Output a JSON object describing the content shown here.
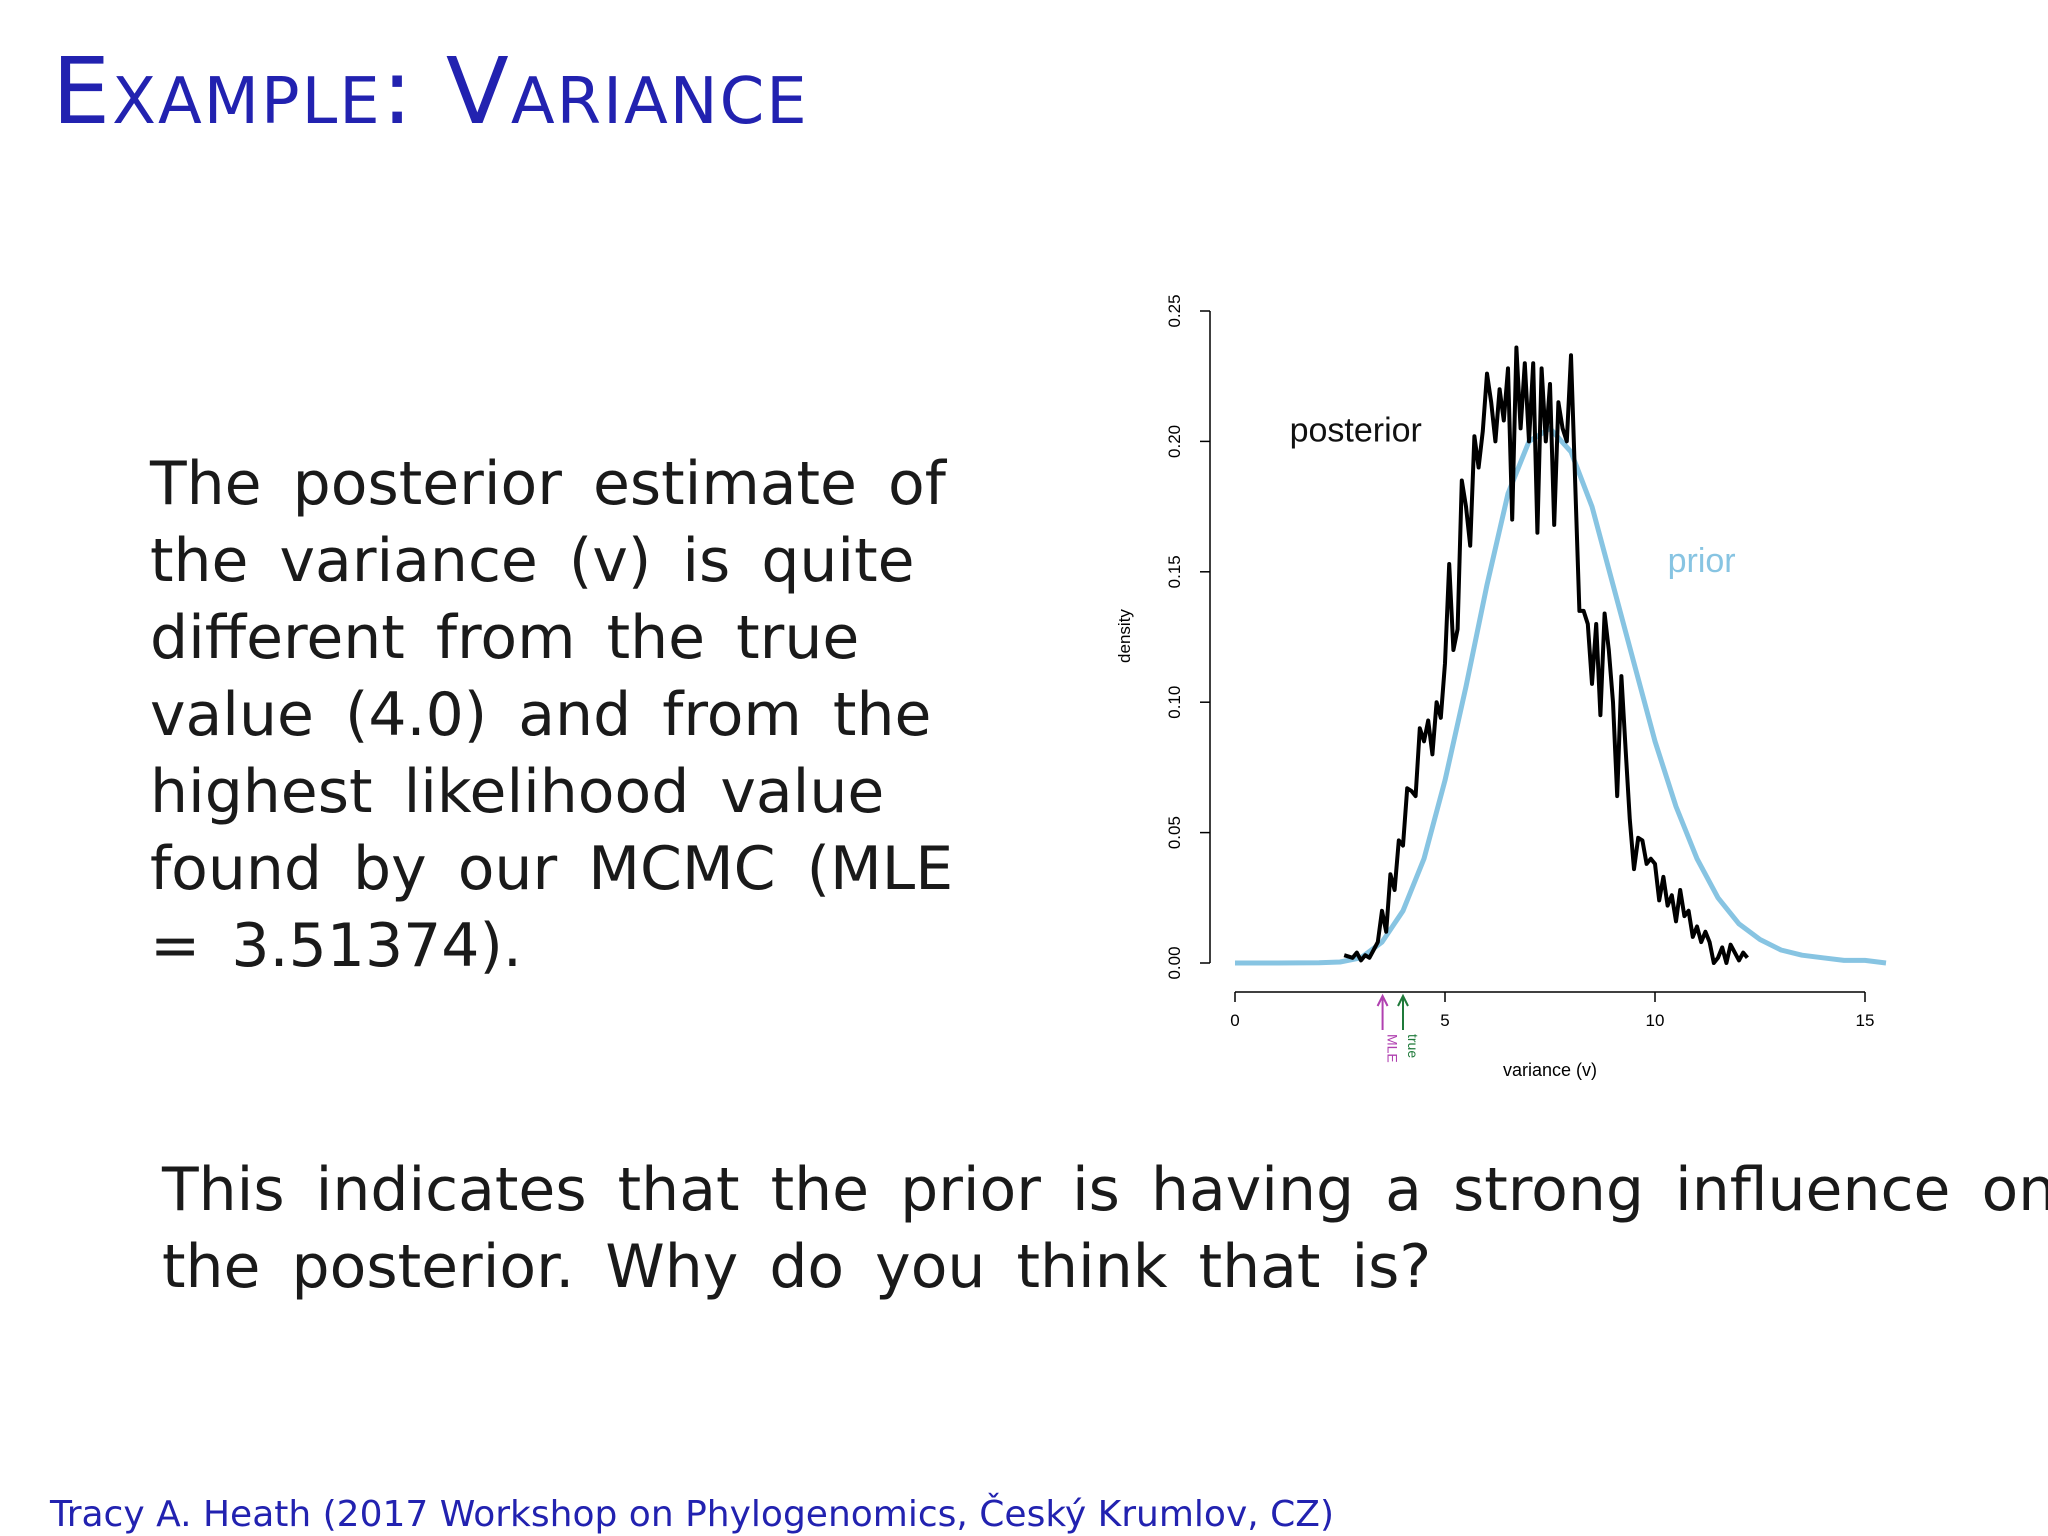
{
  "slide": {
    "title": "Example:  Variance",
    "paragraph1_lines": [
      "The posterior estimate of",
      "the variance (v) is quite",
      "different from the true",
      "value (4.0) and from the",
      "highest likelihood value",
      "found by our MCMC (MLE",
      "= 3.51374)."
    ],
    "paragraph2_lines": [
      "This indicates that the prior is having a strong influence on",
      "the posterior.  Why do you think that is?"
    ],
    "footer": "Tracy A. Heath (2017 Workshop on Phylogenomics, Český Krumlov, CZ)"
  },
  "chart_data": {
    "type": "line",
    "title": "",
    "xlabel": "variance (v)",
    "ylabel": "density",
    "xlim": [
      0,
      15.5
    ],
    "ylim": [
      0,
      0.25
    ],
    "x_ticks": [
      0,
      5,
      10,
      15
    ],
    "x_tick_labels": [
      "0",
      "5",
      "10",
      "15"
    ],
    "y_ticks": [
      0,
      0.05,
      0.1,
      0.15,
      0.2,
      0.25
    ],
    "y_tick_labels": [
      "0.00",
      "0.05",
      "0.10",
      "0.15",
      "0.20",
      "0.25"
    ],
    "grid": false,
    "series": [
      {
        "name": "posterior",
        "color": "#000000",
        "points": [
          [
            2.6,
            0.003
          ],
          [
            2.8,
            0.002
          ],
          [
            2.9,
            0.004
          ],
          [
            3.0,
            0.001
          ],
          [
            3.1,
            0.003
          ],
          [
            3.2,
            0.002
          ],
          [
            3.3,
            0.005
          ],
          [
            3.4,
            0.008
          ],
          [
            3.5,
            0.02
          ],
          [
            3.6,
            0.012
          ],
          [
            3.7,
            0.034
          ],
          [
            3.8,
            0.028
          ],
          [
            3.9,
            0.047
          ],
          [
            4.0,
            0.045
          ],
          [
            4.1,
            0.067
          ],
          [
            4.2,
            0.066
          ],
          [
            4.3,
            0.064
          ],
          [
            4.4,
            0.09
          ],
          [
            4.5,
            0.085
          ],
          [
            4.6,
            0.093
          ],
          [
            4.7,
            0.08
          ],
          [
            4.8,
            0.1
          ],
          [
            4.9,
            0.094
          ],
          [
            5.0,
            0.115
          ],
          [
            5.1,
            0.153
          ],
          [
            5.2,
            0.12
          ],
          [
            5.3,
            0.128
          ],
          [
            5.4,
            0.185
          ],
          [
            5.5,
            0.175
          ],
          [
            5.6,
            0.16
          ],
          [
            5.7,
            0.202
          ],
          [
            5.8,
            0.19
          ],
          [
            5.9,
            0.204
          ],
          [
            6.0,
            0.226
          ],
          [
            6.1,
            0.215
          ],
          [
            6.2,
            0.2
          ],
          [
            6.3,
            0.22
          ],
          [
            6.4,
            0.208
          ],
          [
            6.5,
            0.228
          ],
          [
            6.6,
            0.17
          ],
          [
            6.7,
            0.236
          ],
          [
            6.8,
            0.205
          ],
          [
            6.9,
            0.23
          ],
          [
            7.0,
            0.2
          ],
          [
            7.1,
            0.23
          ],
          [
            7.2,
            0.165
          ],
          [
            7.3,
            0.228
          ],
          [
            7.4,
            0.2
          ],
          [
            7.5,
            0.222
          ],
          [
            7.6,
            0.168
          ],
          [
            7.7,
            0.215
          ],
          [
            7.8,
            0.205
          ],
          [
            7.9,
            0.2
          ],
          [
            8.0,
            0.233
          ],
          [
            8.1,
            0.184
          ],
          [
            8.2,
            0.135
          ],
          [
            8.3,
            0.135
          ],
          [
            8.4,
            0.13
          ],
          [
            8.5,
            0.107
          ],
          [
            8.6,
            0.13
          ],
          [
            8.7,
            0.095
          ],
          [
            8.8,
            0.134
          ],
          [
            8.9,
            0.12
          ],
          [
            9.0,
            0.1
          ],
          [
            9.1,
            0.064
          ],
          [
            9.2,
            0.11
          ],
          [
            9.3,
            0.082
          ],
          [
            9.4,
            0.055
          ],
          [
            9.5,
            0.036
          ],
          [
            9.6,
            0.048
          ],
          [
            9.7,
            0.047
          ],
          [
            9.8,
            0.038
          ],
          [
            9.9,
            0.04
          ],
          [
            10.0,
            0.038
          ],
          [
            10.1,
            0.024
          ],
          [
            10.2,
            0.033
          ],
          [
            10.3,
            0.022
          ],
          [
            10.4,
            0.026
          ],
          [
            10.5,
            0.016
          ],
          [
            10.6,
            0.028
          ],
          [
            10.7,
            0.018
          ],
          [
            10.8,
            0.02
          ],
          [
            10.9,
            0.01
          ],
          [
            11.0,
            0.014
          ],
          [
            11.1,
            0.008
          ],
          [
            11.2,
            0.012
          ],
          [
            11.3,
            0.008
          ],
          [
            11.4,
            0.0
          ],
          [
            11.5,
            0.002
          ],
          [
            11.6,
            0.006
          ],
          [
            11.7,
            0.0
          ],
          [
            11.8,
            0.007
          ],
          [
            11.9,
            0.004
          ],
          [
            12.0,
            0.001
          ],
          [
            12.1,
            0.004
          ],
          [
            12.2,
            0.002
          ]
        ]
      },
      {
        "name": "prior",
        "color": "#87c4e2",
        "points": [
          [
            0,
            0.0
          ],
          [
            1,
            0.0
          ],
          [
            2,
            0.0001
          ],
          [
            2.5,
            0.0004
          ],
          [
            3,
            0.002
          ],
          [
            3.5,
            0.008
          ],
          [
            4,
            0.02
          ],
          [
            4.5,
            0.04
          ],
          [
            5,
            0.07
          ],
          [
            5.5,
            0.106
          ],
          [
            6,
            0.145
          ],
          [
            6.5,
            0.18
          ],
          [
            7,
            0.2
          ],
          [
            7.5,
            0.205
          ],
          [
            8,
            0.196
          ],
          [
            8.5,
            0.175
          ],
          [
            9,
            0.145
          ],
          [
            9.5,
            0.115
          ],
          [
            10,
            0.085
          ],
          [
            10.5,
            0.06
          ],
          [
            11,
            0.04
          ],
          [
            11.5,
            0.025
          ],
          [
            12,
            0.015
          ],
          [
            12.5,
            0.009
          ],
          [
            13,
            0.005
          ],
          [
            13.5,
            0.003
          ],
          [
            14,
            0.002
          ],
          [
            14.5,
            0.001
          ],
          [
            15,
            0.001
          ],
          [
            15.5,
            0.0
          ]
        ]
      }
    ],
    "annotations": [
      {
        "text": "posterior",
        "x": 1.3,
        "y": 0.2,
        "color": "#111111"
      },
      {
        "text": "prior",
        "x": 10.3,
        "y": 0.15,
        "color": "#87c4e2"
      }
    ],
    "markers": [
      {
        "label": "MLE",
        "x": 3.51374,
        "color": "#b040b0"
      },
      {
        "label": "true",
        "x": 4.0,
        "color": "#1f7a3a"
      }
    ]
  }
}
